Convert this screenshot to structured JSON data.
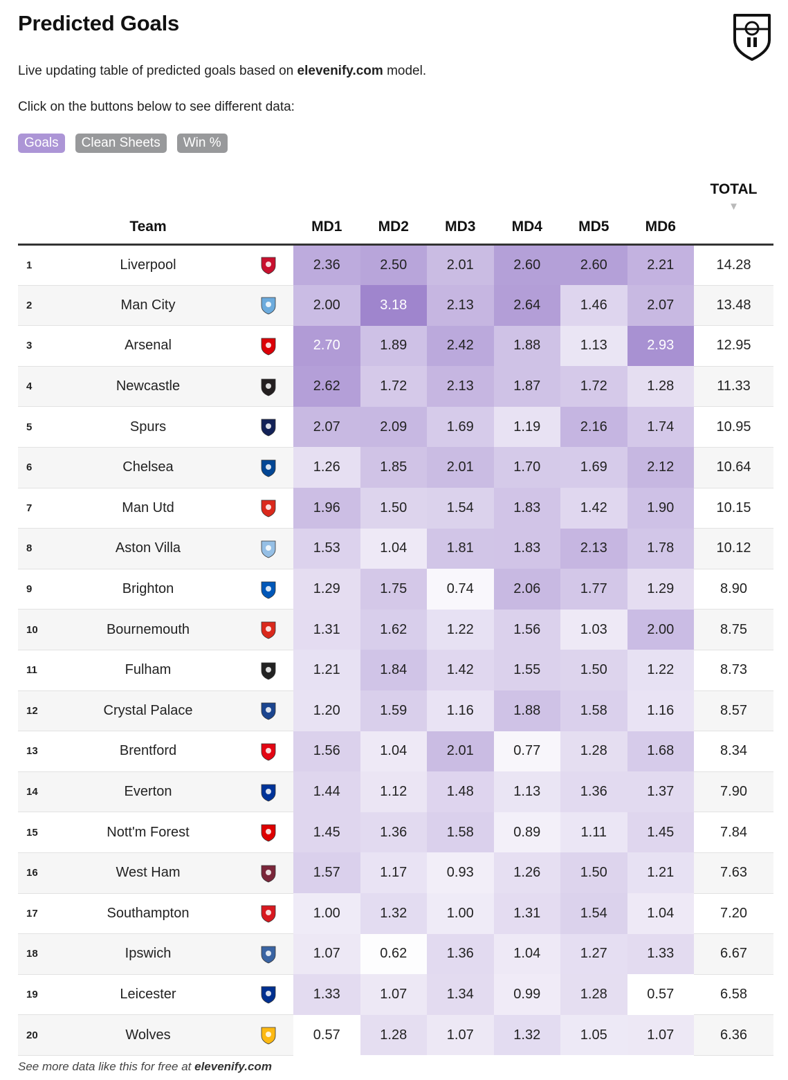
{
  "header": {
    "title": "Predicted Goals",
    "subtitle_prefix": "Live updating table of predicted goals based on ",
    "subtitle_brand": "elevenify.com",
    "subtitle_suffix": " model.",
    "instruction": "Click on the buttons below to see different data:",
    "logo_icon": "elevenify-shield-icon"
  },
  "buttons": [
    {
      "label": "Goals",
      "active": true
    },
    {
      "label": "Clean Sheets",
      "active": false
    },
    {
      "label": "Win %",
      "active": false
    }
  ],
  "table": {
    "columns": {
      "team": "Team",
      "md": [
        "MD1",
        "MD2",
        "MD3",
        "MD4",
        "MD5",
        "MD6"
      ],
      "total": "TOTAL",
      "sort_indicator": "▼"
    },
    "rows": [
      {
        "rank": "1",
        "team": "Liverpool",
        "crest": "liverpool-crest-icon",
        "crest_color": "#c8102e",
        "values": [
          "2.36",
          "2.50",
          "2.01",
          "2.60",
          "2.60",
          "2.21"
        ],
        "total": "14.28"
      },
      {
        "rank": "2",
        "team": "Man City",
        "crest": "man-city-crest-icon",
        "crest_color": "#6cabdd",
        "values": [
          "2.00",
          "3.18",
          "2.13",
          "2.64",
          "1.46",
          "2.07"
        ],
        "total": "13.48"
      },
      {
        "rank": "3",
        "team": "Arsenal",
        "crest": "arsenal-crest-icon",
        "crest_color": "#db0007",
        "values": [
          "2.70",
          "1.89",
          "2.42",
          "1.88",
          "1.13",
          "2.93"
        ],
        "total": "12.95"
      },
      {
        "rank": "4",
        "team": "Newcastle",
        "crest": "newcastle-crest-icon",
        "crest_color": "#241f20",
        "values": [
          "2.62",
          "1.72",
          "2.13",
          "1.87",
          "1.72",
          "1.28"
        ],
        "total": "11.33"
      },
      {
        "rank": "5",
        "team": "Spurs",
        "crest": "spurs-crest-icon",
        "crest_color": "#132257",
        "values": [
          "2.07",
          "2.09",
          "1.69",
          "1.19",
          "2.16",
          "1.74"
        ],
        "total": "10.95"
      },
      {
        "rank": "6",
        "team": "Chelsea",
        "crest": "chelsea-crest-icon",
        "crest_color": "#034694",
        "values": [
          "1.26",
          "1.85",
          "2.01",
          "1.70",
          "1.69",
          "2.12"
        ],
        "total": "10.64"
      },
      {
        "rank": "7",
        "team": "Man Utd",
        "crest": "man-utd-crest-icon",
        "crest_color": "#da291c",
        "values": [
          "1.96",
          "1.50",
          "1.54",
          "1.83",
          "1.42",
          "1.90"
        ],
        "total": "10.15"
      },
      {
        "rank": "8",
        "team": "Aston Villa",
        "crest": "aston-villa-crest-icon",
        "crest_color": "#95bfe5",
        "values": [
          "1.53",
          "1.04",
          "1.81",
          "1.83",
          "2.13",
          "1.78"
        ],
        "total": "10.12"
      },
      {
        "rank": "9",
        "team": "Brighton",
        "crest": "brighton-crest-icon",
        "crest_color": "#0057b8",
        "values": [
          "1.29",
          "1.75",
          "0.74",
          "2.06",
          "1.77",
          "1.29"
        ],
        "total": "8.90"
      },
      {
        "rank": "10",
        "team": "Bournemouth",
        "crest": "bournemouth-crest-icon",
        "crest_color": "#da291c",
        "values": [
          "1.31",
          "1.62",
          "1.22",
          "1.56",
          "1.03",
          "2.00"
        ],
        "total": "8.75"
      },
      {
        "rank": "11",
        "team": "Fulham",
        "crest": "fulham-crest-icon",
        "crest_color": "#222222",
        "values": [
          "1.21",
          "1.84",
          "1.42",
          "1.55",
          "1.50",
          "1.22"
        ],
        "total": "8.73"
      },
      {
        "rank": "12",
        "team": "Crystal Palace",
        "crest": "crystal-palace-crest-icon",
        "crest_color": "#1b458f",
        "values": [
          "1.20",
          "1.59",
          "1.16",
          "1.88",
          "1.58",
          "1.16"
        ],
        "total": "8.57"
      },
      {
        "rank": "13",
        "team": "Brentford",
        "crest": "brentford-crest-icon",
        "crest_color": "#e30613",
        "values": [
          "1.56",
          "1.04",
          "2.01",
          "0.77",
          "1.28",
          "1.68"
        ],
        "total": "8.34"
      },
      {
        "rank": "14",
        "team": "Everton",
        "crest": "everton-crest-icon",
        "crest_color": "#003399",
        "values": [
          "1.44",
          "1.12",
          "1.48",
          "1.13",
          "1.36",
          "1.37"
        ],
        "total": "7.90"
      },
      {
        "rank": "15",
        "team": "Nott'm Forest",
        "crest": "nottm-forest-crest-icon",
        "crest_color": "#dd0000",
        "values": [
          "1.45",
          "1.36",
          "1.58",
          "0.89",
          "1.11",
          "1.45"
        ],
        "total": "7.84"
      },
      {
        "rank": "16",
        "team": "West Ham",
        "crest": "west-ham-crest-icon",
        "crest_color": "#7a263a",
        "values": [
          "1.57",
          "1.17",
          "0.93",
          "1.26",
          "1.50",
          "1.21"
        ],
        "total": "7.63"
      },
      {
        "rank": "17",
        "team": "Southampton",
        "crest": "southampton-crest-icon",
        "crest_color": "#d71920",
        "values": [
          "1.00",
          "1.32",
          "1.00",
          "1.31",
          "1.54",
          "1.04"
        ],
        "total": "7.20"
      },
      {
        "rank": "18",
        "team": "Ipswich",
        "crest": "ipswich-crest-icon",
        "crest_color": "#3a64a3",
        "values": [
          "1.07",
          "0.62",
          "1.36",
          "1.04",
          "1.27",
          "1.33"
        ],
        "total": "6.67"
      },
      {
        "rank": "19",
        "team": "Leicester",
        "crest": "leicester-crest-icon",
        "crest_color": "#003090",
        "values": [
          "1.33",
          "1.07",
          "1.34",
          "0.99",
          "1.28",
          "0.57"
        ],
        "total": "6.58"
      },
      {
        "rank": "20",
        "team": "Wolves",
        "crest": "wolves-crest-icon",
        "crest_color": "#fdb913",
        "values": [
          "0.57",
          "1.28",
          "1.07",
          "1.32",
          "1.05",
          "1.07"
        ],
        "total": "6.36"
      }
    ]
  },
  "heat_colors": {
    "low": "#ffffff",
    "high": "#9f85cd",
    "min_value": 0.57,
    "max_value": 3.18
  },
  "footer": {
    "prefix": "See more data like this for free at ",
    "brand": "elevenify.com"
  }
}
